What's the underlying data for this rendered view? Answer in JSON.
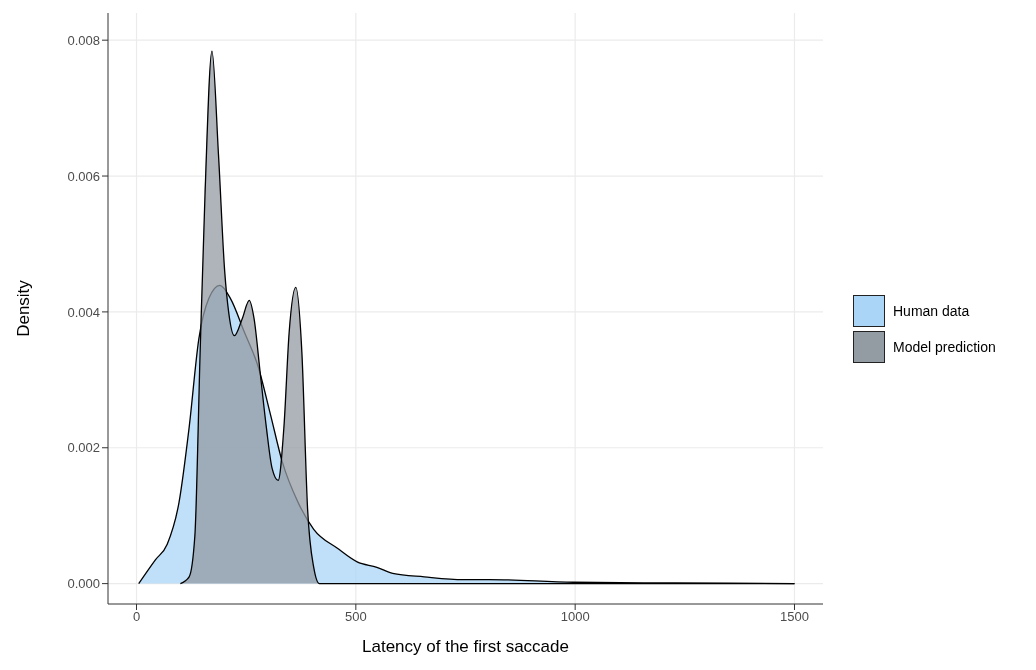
{
  "chart_data": {
    "type": "area",
    "xlabel": "Latency of the first saccade",
    "ylabel": "Density",
    "xlim": [
      -65,
      1565
    ],
    "ylim": [
      -0.0003,
      0.0084
    ],
    "xticks": [
      0,
      500,
      1000,
      1500
    ],
    "yticks": [
      {
        "value": 0,
        "label": "0.000"
      },
      {
        "value": 0.002,
        "label": "0.002"
      },
      {
        "value": 0.004,
        "label": "0.004"
      },
      {
        "value": 0.006,
        "label": "0.006"
      },
      {
        "value": 0.008,
        "label": "0.008"
      }
    ],
    "grid": true,
    "legend": "right",
    "series": [
      {
        "name": "Human data",
        "color": "#abd5f7",
        "x": [
          5,
          43,
          70,
          97,
          120,
          142,
          165,
          190,
          214,
          246,
          277,
          305,
          332,
          368,
          404,
          458,
          503,
          548,
          584,
          656,
          745,
          804,
          996,
          1227,
          1500
        ],
        "values": [
          0,
          0.00035,
          0.00058,
          0.0012,
          0.0023,
          0.0036,
          0.0042,
          0.00439,
          0.0042,
          0.0037,
          0.0032,
          0.0025,
          0.0018,
          0.0012,
          0.0008,
          0.00052,
          0.00032,
          0.00024,
          0.00015,
          0.0001,
          6e-05,
          6e-05,
          2e-05,
          1e-05,
          0
        ]
      },
      {
        "name": "Model prediction",
        "color": "#939ba3",
        "x": [
          100,
          120,
          133,
          145,
          156,
          172,
          187,
          201,
          210,
          223,
          241,
          257,
          268,
          282,
          296,
          309,
          323,
          336,
          348,
          363,
          377,
          390,
          404,
          417,
          450,
          1500
        ],
        "values": [
          0,
          0.0001,
          0.0007,
          0.0034,
          0.0057,
          0.00784,
          0.0063,
          0.0046,
          0.004,
          0.00365,
          0.0039,
          0.00417,
          0.0039,
          0.0031,
          0.0023,
          0.0017,
          0.00152,
          0.0023,
          0.0037,
          0.00436,
          0.0034,
          0.0011,
          0.00024,
          0,
          0,
          0
        ]
      }
    ]
  }
}
